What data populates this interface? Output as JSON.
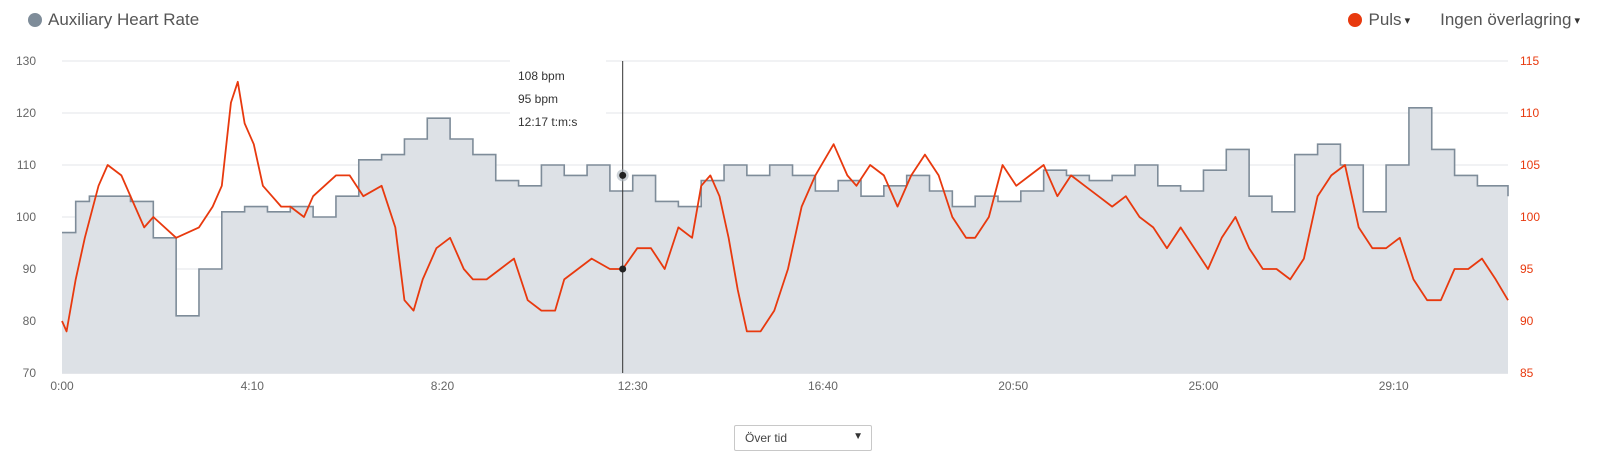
{
  "legend": {
    "aux": {
      "label": "Auxiliary Heart Rate",
      "color": "#7e8c99"
    },
    "puls": {
      "label": "Puls",
      "color": "#e8390e",
      "caret": "▾"
    },
    "overlay": {
      "label": "Ingen överlagring",
      "caret": "▾"
    }
  },
  "tooltip": {
    "line1": "108 bpm",
    "line2": "95 bpm",
    "line3": "12:17 t:m:s"
  },
  "dropdown": {
    "value": "Över tid",
    "arrow": "▼"
  },
  "chart_data": {
    "type": "line",
    "x_unit": "minutes",
    "xlim": [
      0,
      31.67
    ],
    "x_ticks": [
      {
        "value": 0,
        "label": "0:00"
      },
      {
        "value": 4.1667,
        "label": "4:10"
      },
      {
        "value": 8.3333,
        "label": "8:20"
      },
      {
        "value": 12.5,
        "label": "12:30"
      },
      {
        "value": 16.6667,
        "label": "16:40"
      },
      {
        "value": 20.8333,
        "label": "20:50"
      },
      {
        "value": 25,
        "label": "25:00"
      },
      {
        "value": 29.1667,
        "label": "29:10"
      }
    ],
    "y_left": {
      "lim": [
        70,
        130
      ],
      "ticks": [
        70,
        80,
        90,
        100,
        110,
        120,
        130
      ],
      "color": "#7e8c99"
    },
    "y_right": {
      "lim": [
        85,
        115
      ],
      "ticks": [
        85,
        90,
        95,
        100,
        105,
        110,
        115
      ],
      "color": "#e8390e"
    },
    "grid": true,
    "series": [
      {
        "name": "Auxiliary Heart Rate",
        "axis": "left",
        "style": "area-step",
        "color": "#7e8c99",
        "fill": "#dde1e6",
        "x": [
          0,
          0.3,
          0.6,
          1,
          1.5,
          2,
          2.5,
          3,
          3.5,
          4,
          4.5,
          5,
          5.5,
          6,
          6.5,
          7,
          7.5,
          8,
          8.5,
          9,
          9.5,
          10,
          10.5,
          11,
          11.5,
          12,
          12.5,
          13,
          13.5,
          14,
          14.5,
          15,
          15.5,
          16,
          16.5,
          17,
          17.5,
          18,
          18.5,
          19,
          19.5,
          20,
          20.5,
          21,
          21.5,
          22,
          22.5,
          23,
          23.5,
          24,
          24.5,
          25,
          25.5,
          26,
          26.5,
          27,
          27.5,
          28,
          28.5,
          29,
          29.5,
          30,
          30.5,
          31,
          31.67
        ],
        "y": [
          97,
          103,
          104,
          104,
          103,
          96,
          81,
          90,
          101,
          102,
          101,
          102,
          100,
          104,
          111,
          112,
          115,
          119,
          115,
          112,
          107,
          106,
          110,
          108,
          110,
          105,
          108,
          103,
          102,
          107,
          110,
          108,
          110,
          108,
          105,
          107,
          104,
          106,
          108,
          105,
          102,
          104,
          103,
          105,
          109,
          108,
          107,
          108,
          110,
          106,
          105,
          109,
          113,
          104,
          101,
          112,
          114,
          110,
          101,
          110,
          121,
          113,
          108,
          106,
          104
        ]
      },
      {
        "name": "Puls",
        "axis": "right",
        "style": "line",
        "color": "#e8390e",
        "x": [
          0,
          0.1,
          0.3,
          0.5,
          0.8,
          1,
          1.3,
          1.6,
          1.8,
          2,
          2.5,
          3,
          3.3,
          3.5,
          3.6,
          3.7,
          3.85,
          4,
          4.1,
          4.2,
          4.4,
          4.6,
          4.8,
          5,
          5.3,
          5.5,
          6,
          6.3,
          6.6,
          7,
          7.3,
          7.5,
          7.7,
          7.9,
          8.2,
          8.5,
          8.8,
          9,
          9.3,
          9.6,
          9.9,
          10.2,
          10.5,
          10.8,
          11,
          11.3,
          11.6,
          12,
          12.28,
          12.6,
          12.9,
          13.2,
          13.5,
          13.8,
          14,
          14.2,
          14.4,
          14.6,
          14.8,
          15,
          15.3,
          15.6,
          15.9,
          16.2,
          16.5,
          16.9,
          17.2,
          17.4,
          17.7,
          18,
          18.3,
          18.6,
          18.9,
          19.2,
          19.5,
          19.8,
          20,
          20.3,
          20.6,
          20.9,
          21.2,
          21.5,
          21.8,
          22.1,
          22.4,
          22.7,
          23,
          23.3,
          23.6,
          23.9,
          24.2,
          24.5,
          24.8,
          25.1,
          25.4,
          25.7,
          26,
          26.3,
          26.6,
          26.9,
          27.2,
          27.5,
          27.8,
          28.1,
          28.4,
          28.7,
          29,
          29.3,
          29.6,
          29.9,
          30.2,
          30.5,
          30.8,
          31.1,
          31.4,
          31.67
        ],
        "y": [
          90,
          89,
          94,
          98,
          103,
          105,
          104,
          101,
          99,
          100,
          98,
          99,
          101,
          103,
          107,
          111,
          113,
          109,
          108,
          107,
          103,
          102,
          101,
          101,
          100,
          102,
          104,
          104,
          102,
          103,
          99,
          92,
          91,
          94,
          97,
          98,
          95,
          94,
          94,
          95,
          96,
          92,
          91,
          91,
          94,
          95,
          96,
          95,
          95,
          97,
          97,
          95,
          99,
          98,
          103,
          104,
          102,
          98,
          93,
          89,
          89,
          91,
          95,
          101,
          104,
          107,
          104,
          103,
          105,
          104,
          101,
          104,
          106,
          104,
          100,
          98,
          98,
          100,
          105,
          103,
          104,
          105,
          102,
          104,
          103,
          102,
          101,
          102,
          100,
          99,
          97,
          99,
          97,
          95,
          98,
          100,
          97,
          95,
          95,
          94,
          96,
          102,
          104,
          105,
          99,
          97,
          97,
          98,
          94,
          92,
          92,
          95,
          95,
          96,
          94,
          92
        ]
      }
    ],
    "hover": {
      "x": 12.28,
      "aux_value": 108,
      "puls_value": 95
    }
  }
}
